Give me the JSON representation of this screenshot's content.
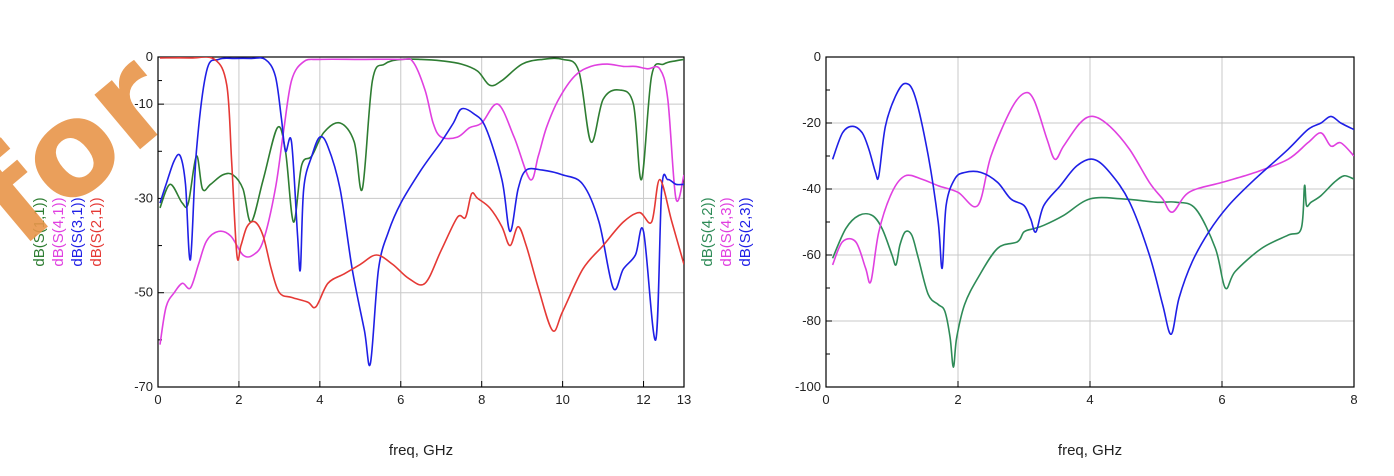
{
  "watermark": {
    "text": "for",
    "color": "#e8954a"
  },
  "chart_data": [
    {
      "type": "line",
      "xlabel": "freq, GHz",
      "xlim": [
        0,
        13
      ],
      "ylim": [
        -70,
        0
      ],
      "xticks": [
        0,
        2,
        4,
        6,
        8,
        10,
        12,
        13
      ],
      "yticks": [
        0,
        -10,
        -30,
        -50,
        -70
      ],
      "grid": true,
      "series": [
        {
          "name": "dB(S(1,1))",
          "color": "#2e7d32",
          "x": [
            0.05,
            0.3,
            0.6,
            0.75,
            0.95,
            1.1,
            1.3,
            1.6,
            1.85,
            2.1,
            2.3,
            2.6,
            2.95,
            3.15,
            3.35,
            3.55,
            3.8,
            4.1,
            4.5,
            4.85,
            5.05,
            5.3,
            5.6,
            6.0,
            6.5,
            7.0,
            7.5,
            7.9,
            8.2,
            8.5,
            9.0,
            9.5,
            10.0,
            10.4,
            10.7,
            11.0,
            11.4,
            11.75,
            11.95,
            12.2,
            12.5,
            12.8,
            13.0
          ],
          "y": [
            -32,
            -27,
            -31,
            -31,
            -21,
            -28,
            -27,
            -25,
            -25,
            -28,
            -35,
            -26,
            -15,
            -20,
            -35,
            -23,
            -21,
            -16,
            -14,
            -18,
            -28,
            -5,
            -1.5,
            -0.5,
            -0.5,
            -0.8,
            -1.5,
            -3,
            -6,
            -5,
            -1.5,
            -0.5,
            -0.5,
            -3,
            -18,
            -9,
            -7,
            -10,
            -26,
            -4,
            -1.5,
            -0.8,
            -0.5
          ]
        },
        {
          "name": "dB(S(4,1))",
          "color": "#e040e0",
          "x": [
            0.05,
            0.2,
            0.4,
            0.6,
            0.8,
            1.0,
            1.2,
            1.5,
            1.8,
            2.1,
            2.35,
            2.6,
            2.9,
            3.1,
            3.3,
            3.6,
            4.0,
            5.0,
            6.0,
            6.3,
            6.6,
            6.8,
            7.0,
            7.4,
            7.7,
            8.0,
            8.4,
            8.8,
            9.2,
            9.4,
            9.6,
            9.9,
            10.3,
            10.7,
            11.1,
            11.5,
            11.8,
            12.1,
            12.4,
            12.6,
            12.8,
            13.0
          ],
          "y": [
            -61,
            -53,
            -50,
            -48,
            -49,
            -44,
            -39,
            -37,
            -38,
            -42,
            -42,
            -39,
            -28,
            -16,
            -5,
            -1,
            -0.5,
            -0.5,
            -0.5,
            -1,
            -7,
            -14,
            -17,
            -17,
            -15,
            -14,
            -10,
            -17,
            -26,
            -21,
            -15,
            -9,
            -4,
            -2,
            -1.5,
            -2,
            -2,
            -2.5,
            -2.5,
            -9,
            -30,
            -25
          ]
        },
        {
          "name": "dB(S(3,1))",
          "color": "#1f1fe6",
          "x": [
            0.05,
            0.2,
            0.4,
            0.55,
            0.68,
            0.8,
            0.95,
            1.2,
            1.5,
            1.9,
            2.3,
            2.65,
            2.9,
            3.05,
            3.15,
            3.3,
            3.45,
            3.52,
            3.6,
            3.8,
            4.0,
            4.2,
            4.5,
            4.8,
            5.1,
            5.25,
            5.45,
            5.7,
            6.0,
            6.5,
            7.0,
            7.3,
            7.5,
            7.8,
            8.1,
            8.5,
            8.7,
            8.9,
            9.1,
            9.5,
            10.0,
            10.5,
            10.9,
            11.25,
            11.5,
            11.8,
            12.0,
            12.3,
            12.45,
            12.6,
            12.8,
            13.0
          ],
          "y": [
            -31,
            -27,
            -22,
            -21,
            -27,
            -43,
            -20,
            -3,
            -0.5,
            -0.3,
            -0.3,
            -0.5,
            -4,
            -13,
            -20,
            -18,
            -38,
            -45,
            -28,
            -21,
            -17,
            -19,
            -28,
            -45,
            -58,
            -65,
            -45,
            -37,
            -31,
            -24,
            -18,
            -14,
            -11,
            -12,
            -15,
            -26,
            -37,
            -28,
            -24,
            -24,
            -25,
            -27,
            -35,
            -49,
            -45,
            -42,
            -37,
            -60,
            -28,
            -26,
            -27,
            -27
          ]
        },
        {
          "name": "dB(S(2,1))",
          "color": "#e53935",
          "x": [
            0.05,
            0.8,
            1.4,
            1.7,
            1.82,
            1.95,
            2.05,
            2.2,
            2.4,
            2.6,
            2.8,
            3.0,
            3.3,
            3.7,
            3.9,
            4.2,
            4.6,
            5.0,
            5.4,
            5.8,
            6.2,
            6.6,
            7.0,
            7.4,
            7.6,
            7.75,
            7.9,
            8.2,
            8.5,
            8.7,
            8.9,
            9.1,
            9.4,
            9.75,
            10.0,
            10.5,
            11.0,
            11.5,
            11.9,
            12.2,
            12.4,
            12.7,
            13.0
          ],
          "y": [
            -0.2,
            -0.2,
            -0.5,
            -6,
            -22,
            -42,
            -40,
            -36,
            -35,
            -38,
            -45,
            -50,
            -51,
            -52,
            -53,
            -48,
            -46,
            -44,
            -42,
            -44,
            -47,
            -48,
            -41,
            -34,
            -34,
            -29,
            -30,
            -32,
            -36,
            -40,
            -36,
            -40,
            -49,
            -58,
            -54,
            -45,
            -40,
            -35,
            -33,
            -35,
            -26,
            -35,
            -44
          ]
        }
      ]
    },
    {
      "type": "line",
      "xlabel": "freq, GHz",
      "xlim": [
        0,
        8
      ],
      "ylim": [
        -100,
        0
      ],
      "xticks": [
        0,
        2,
        4,
        6,
        8
      ],
      "yticks": [
        0,
        -20,
        -40,
        -60,
        -80,
        -100
      ],
      "grid": true,
      "series": [
        {
          "name": "dB(S(4,2))",
          "color": "#2e8b57",
          "x": [
            0.1,
            0.3,
            0.5,
            0.7,
            0.85,
            1.0,
            1.06,
            1.12,
            1.2,
            1.3,
            1.4,
            1.55,
            1.7,
            1.8,
            1.88,
            1.93,
            1.98,
            2.1,
            2.3,
            2.6,
            2.9,
            3.0,
            3.15,
            3.3,
            3.6,
            4.0,
            4.5,
            5.0,
            5.3,
            5.6,
            5.9,
            6.05,
            6.2,
            6.6,
            7.0,
            7.2,
            7.25,
            7.28,
            7.35,
            7.5,
            7.7,
            7.85,
            8.0
          ],
          "y": [
            -61,
            -52,
            -48,
            -48,
            -52,
            -60,
            -63,
            -57,
            -53,
            -54,
            -61,
            -72,
            -75,
            -77,
            -85,
            -94,
            -85,
            -75,
            -67,
            -58,
            -56,
            -53,
            -52,
            -51,
            -48,
            -43,
            -43,
            -44,
            -44,
            -46,
            -58,
            -70,
            -65,
            -58,
            -54,
            -52,
            -39,
            -45,
            -44,
            -42,
            -38,
            -36,
            -37
          ]
        },
        {
          "name": "dB(S(4,3))",
          "color": "#e040e0",
          "x": [
            0.1,
            0.25,
            0.45,
            0.6,
            0.68,
            0.8,
            1.0,
            1.2,
            1.45,
            1.7,
            2.0,
            2.3,
            2.5,
            2.8,
            3.0,
            3.15,
            3.35,
            3.47,
            3.6,
            3.85,
            4.05,
            4.3,
            4.6,
            4.9,
            5.1,
            5.25,
            5.5,
            6.0,
            6.5,
            7.0,
            7.3,
            7.5,
            7.65,
            7.8,
            8.0
          ],
          "y": [
            -63,
            -56,
            -56,
            -64,
            -68,
            -53,
            -41,
            -36,
            -37,
            -39,
            -41,
            -45,
            -30,
            -16,
            -11,
            -13,
            -25,
            -31,
            -27,
            -20,
            -18,
            -21,
            -28,
            -38,
            -43,
            -47,
            -41,
            -38,
            -35,
            -31,
            -26,
            -23,
            -27,
            -26,
            -30
          ]
        },
        {
          "name": "dB(S(2,3))",
          "color": "#1f1fe6",
          "x": [
            0.1,
            0.25,
            0.4,
            0.55,
            0.65,
            0.75,
            0.8,
            0.9,
            1.05,
            1.2,
            1.35,
            1.55,
            1.7,
            1.76,
            1.82,
            1.95,
            2.1,
            2.35,
            2.6,
            2.8,
            3.0,
            3.1,
            3.18,
            3.3,
            3.55,
            3.8,
            4.05,
            4.3,
            4.6,
            4.9,
            5.1,
            5.23,
            5.35,
            5.55,
            5.8,
            6.1,
            6.5,
            7.0,
            7.3,
            7.5,
            7.65,
            7.8,
            8.0
          ],
          "y": [
            -31,
            -23,
            -21,
            -23,
            -28,
            -35,
            -36,
            -21,
            -12,
            -8,
            -12,
            -30,
            -50,
            -64,
            -45,
            -37,
            -35,
            -35,
            -38,
            -43,
            -45,
            -49,
            -53,
            -45,
            -39,
            -33,
            -31,
            -35,
            -44,
            -60,
            -75,
            -84,
            -73,
            -62,
            -53,
            -45,
            -37,
            -28,
            -22,
            -20,
            -18,
            -20,
            -22
          ]
        }
      ]
    }
  ]
}
